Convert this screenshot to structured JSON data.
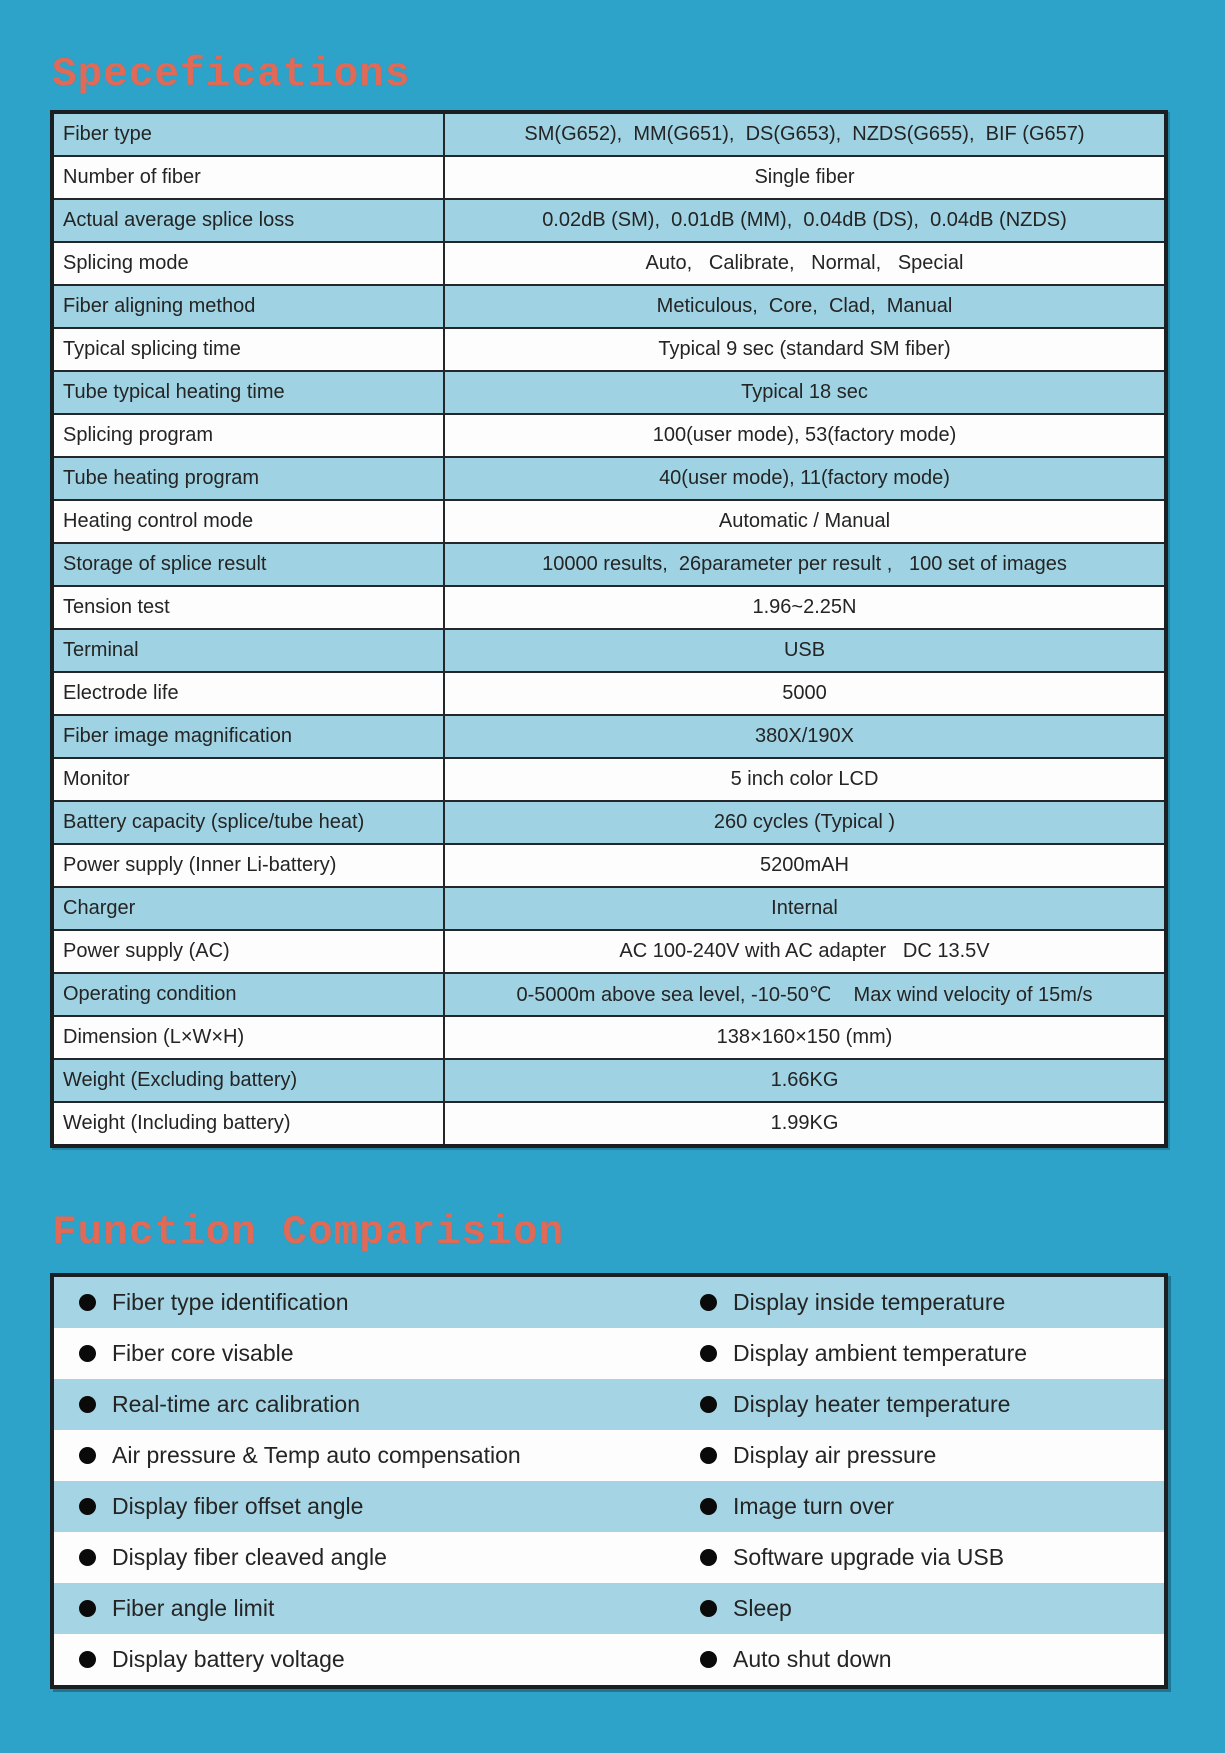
{
  "colors": {
    "page_background": "#2ea3c9",
    "title_red": "#e06a58",
    "row_highlight_blue": "#9fd2e2",
    "row_white": "#fdfdfd",
    "table_border_black": "#1b1f22",
    "text_dark": "#242424"
  },
  "spec_section": {
    "title": "Specefications",
    "rows": [
      {
        "label": "Fiber type",
        "value": "SM(G652),  MM(G651),  DS(G653),  NZDS(G655),  BIF (G657)"
      },
      {
        "label": "Number of fiber",
        "value": "Single fiber"
      },
      {
        "label": "Actual average splice loss",
        "value": "0.02dB (SM),  0.01dB (MM),  0.04dB (DS),  0.04dB (NZDS)"
      },
      {
        "label": "Splicing mode",
        "value": "Auto,   Calibrate,   Normal,   Special"
      },
      {
        "label": "Fiber aligning method",
        "value": "Meticulous,  Core,  Clad,  Manual"
      },
      {
        "label": "Typical splicing time",
        "value": "Typical 9 sec (standard SM fiber)"
      },
      {
        "label": "Tube typical heating time",
        "value": "Typical 18 sec"
      },
      {
        "label": "Splicing program",
        "value": "100(user mode), 53(factory mode)"
      },
      {
        "label": "Tube heating program",
        "value": "40(user mode), 11(factory mode)"
      },
      {
        "label": "Heating control mode",
        "value": "Automatic / Manual"
      },
      {
        "label": "Storage of splice result",
        "value": "10000 results,  26parameter per result ,   100 set of images"
      },
      {
        "label": "Tension test",
        "value": "1.96~2.25N"
      },
      {
        "label": "Terminal",
        "value": "USB"
      },
      {
        "label": "Electrode life",
        "value": "5000"
      },
      {
        "label": "Fiber image magnification",
        "value": "380X/190X"
      },
      {
        "label": "Monitor",
        "value": "5 inch color LCD"
      },
      {
        "label": "Battery capacity (splice/tube heat)",
        "value": "260 cycles (Typical )"
      },
      {
        "label": "Power supply (Inner Li-battery)",
        "value": "5200mAH"
      },
      {
        "label": "Charger",
        "value": "Internal"
      },
      {
        "label": "Power supply (AC)",
        "value": "AC 100-240V with AC adapter   DC 13.5V"
      },
      {
        "label": "Operating condition",
        "value": "0-5000m above sea level, -10-50℃    Max wind velocity of 15m/s"
      },
      {
        "label": "Dimension (L×W×H)",
        "value": "138×160×150 (mm)"
      },
      {
        "label": "Weight (Excluding battery)",
        "value": "1.66KG"
      },
      {
        "label": "Weight (Including battery)",
        "value": "1.99KG"
      }
    ]
  },
  "function_section": {
    "title": "Function Comparision",
    "left_items": [
      "Fiber type identification",
      "Fiber core visable",
      "Real-time arc calibration",
      "Air pressure & Temp auto compensation",
      "Display fiber offset angle",
      "Display fiber cleaved angle",
      "Fiber angle limit",
      "Display battery voltage"
    ],
    "right_items": [
      "Display inside temperature",
      "Display ambient temperature",
      "Display heater temperature",
      "Display air pressure",
      "Image turn over",
      "Software upgrade via USB",
      "Sleep",
      "Auto shut down"
    ]
  }
}
